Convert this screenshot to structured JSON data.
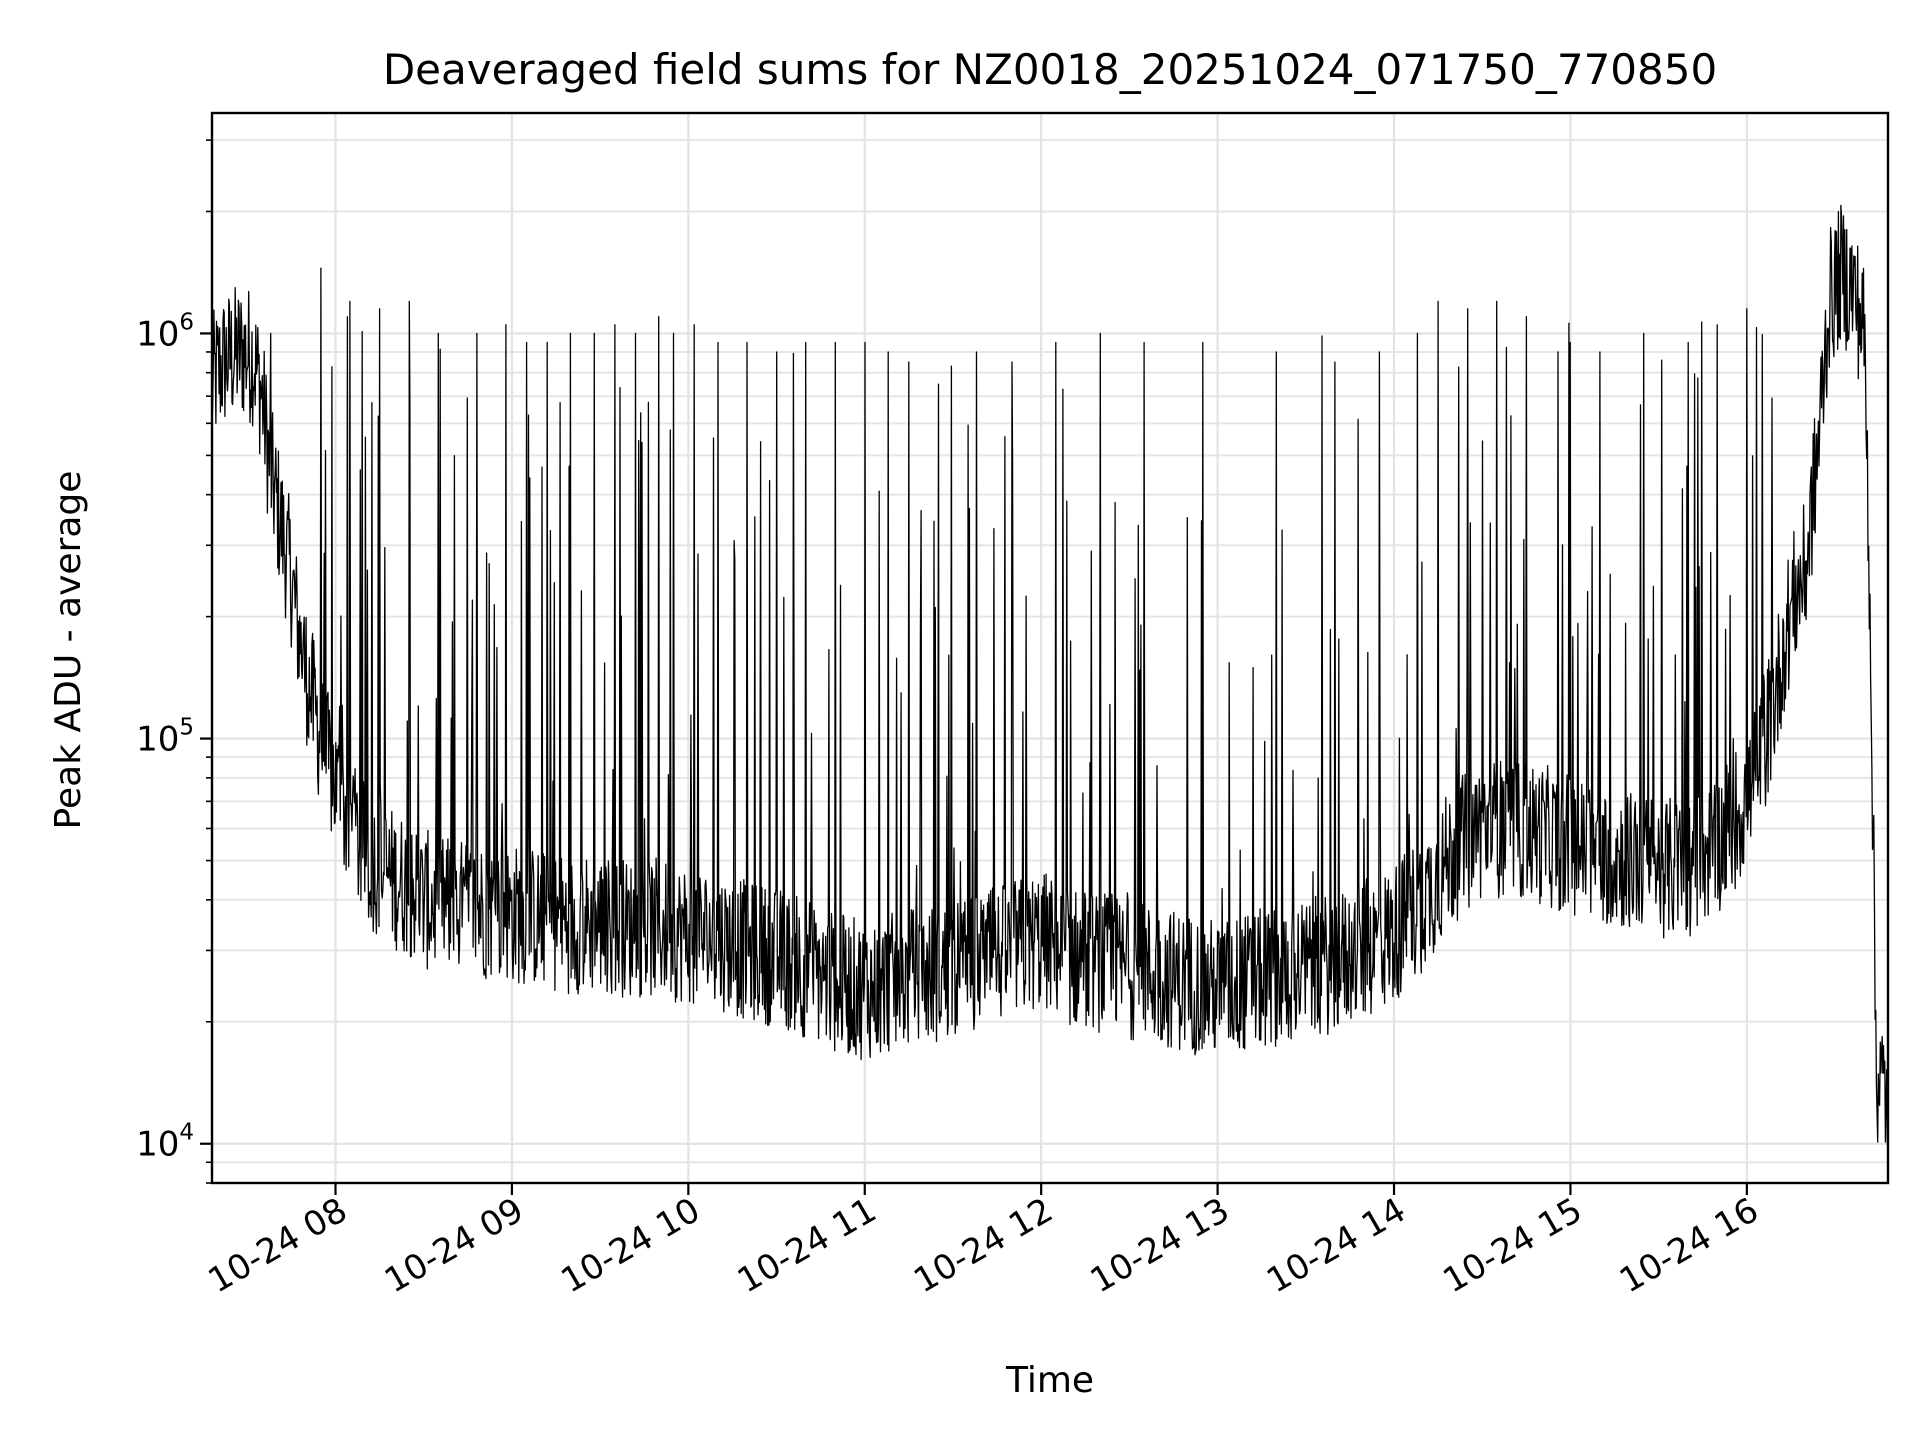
{
  "chart_data": {
    "type": "line",
    "title": "Deaveraged field sums for NZ0018_20251024_071750_770850",
    "xlabel": "Time",
    "ylabel": "Peak ADU - average",
    "yscale": "log",
    "ylim": [
      8000,
      3500000
    ],
    "xlim": [
      "2025-10-24 07:18",
      "2025-10-24 16:48"
    ],
    "grid": true,
    "line_color": "#000000",
    "x_ticks": [
      {
        "label": "10-24 08",
        "time": "2025-10-24 08:00"
      },
      {
        "label": "10-24 09",
        "time": "2025-10-24 09:00"
      },
      {
        "label": "10-24 10",
        "time": "2025-10-24 10:00"
      },
      {
        "label": "10-24 11",
        "time": "2025-10-24 11:00"
      },
      {
        "label": "10-24 12",
        "time": "2025-10-24 12:00"
      },
      {
        "label": "10-24 13",
        "time": "2025-10-24 13:00"
      },
      {
        "label": "10-24 14",
        "time": "2025-10-24 14:00"
      },
      {
        "label": "10-24 15",
        "time": "2025-10-24 15:00"
      },
      {
        "label": "10-24 16",
        "time": "2025-10-24 16:00"
      }
    ],
    "y_ticks": [
      {
        "base": "10",
        "exp": "4",
        "value": 10000
      },
      {
        "base": "10",
        "exp": "5",
        "value": 100000
      },
      {
        "base": "10",
        "exp": "6",
        "value": 1000000
      }
    ],
    "series": [
      {
        "x": [
          "2025-10-24 07:18",
          "2025-10-24 07:22",
          "2025-10-24 07:25",
          "2025-10-24 07:28",
          "2025-10-24 07:32",
          "2025-10-24 07:35",
          "2025-10-24 07:38",
          "2025-10-24 07:42",
          "2025-10-24 07:45",
          "2025-10-24 07:48",
          "2025-10-24 07:52",
          "2025-10-24 07:55",
          "2025-10-24 07:58",
          "2025-10-24 08:02",
          "2025-10-24 08:05",
          "2025-10-24 08:08",
          "2025-10-24 08:12",
          "2025-10-24 08:15",
          "2025-10-24 08:20",
          "2025-10-24 08:25",
          "2025-10-24 08:30",
          "2025-10-24 08:40",
          "2025-10-24 08:50",
          "2025-10-24 09:00",
          "2025-10-24 09:10",
          "2025-10-24 09:20",
          "2025-10-24 09:30",
          "2025-10-24 09:40",
          "2025-10-24 09:50",
          "2025-10-24 10:00",
          "2025-10-24 10:10",
          "2025-10-24 10:20",
          "2025-10-24 10:30",
          "2025-10-24 10:40",
          "2025-10-24 10:50",
          "2025-10-24 11:00",
          "2025-10-24 11:10",
          "2025-10-24 11:20",
          "2025-10-24 11:30",
          "2025-10-24 11:40",
          "2025-10-24 11:50",
          "2025-10-24 12:00",
          "2025-10-24 12:10",
          "2025-10-24 12:20",
          "2025-10-24 12:30",
          "2025-10-24 12:40",
          "2025-10-24 12:50",
          "2025-10-24 13:00",
          "2025-10-24 13:10",
          "2025-10-24 13:20",
          "2025-10-24 13:30",
          "2025-10-24 13:40",
          "2025-10-24 13:50",
          "2025-10-24 14:00",
          "2025-10-24 14:10",
          "2025-10-24 14:20",
          "2025-10-24 14:30",
          "2025-10-24 14:40",
          "2025-10-24 14:50",
          "2025-10-24 15:00",
          "2025-10-24 15:10",
          "2025-10-24 15:20",
          "2025-10-24 15:30",
          "2025-10-24 15:40",
          "2025-10-24 15:50",
          "2025-10-24 16:00",
          "2025-10-24 16:05",
          "2025-10-24 16:10",
          "2025-10-24 16:13",
          "2025-10-24 16:16",
          "2025-10-24 16:20",
          "2025-10-24 16:24",
          "2025-10-24 16:28",
          "2025-10-24 16:32",
          "2025-10-24 16:36",
          "2025-10-24 16:40",
          "2025-10-24 16:42",
          "2025-10-24 16:44",
          "2025-10-24 16:46",
          "2025-10-24 16:48"
        ],
        "y": [
          750000,
          850000,
          880000,
          900000,
          880000,
          700000,
          450000,
          320000,
          250000,
          170000,
          125000,
          100000,
          85000,
          70000,
          60000,
          55000,
          50000,
          48000,
          45000,
          43000,
          40000,
          38000,
          38000,
          37000,
          36000,
          35000,
          35000,
          34000,
          34000,
          33000,
          32000,
          30000,
          29000,
          27000,
          25000,
          24000,
          25000,
          26000,
          27000,
          28000,
          30000,
          32000,
          29000,
          28000,
          27000,
          26000,
          25000,
          24000,
          25000,
          26000,
          27000,
          28000,
          30000,
          33000,
          40000,
          52000,
          60000,
          60000,
          58000,
          55000,
          52000,
          50000,
          48000,
          48000,
          55000,
          70000,
          90000,
          130000,
          180000,
          220000,
          260000,
          500000,
          1200000,
          1400000,
          1300000,
          1000000,
          200000,
          15000,
          14000,
          13000
        ]
      }
    ],
    "spikes": {
      "x": [
        "2025-10-24 07:38",
        "2025-10-24 07:55",
        "2025-10-24 08:05",
        "2025-10-24 08:15",
        "2025-10-24 08:25",
        "2025-10-24 08:35",
        "2025-10-24 08:48",
        "2025-10-24 08:58",
        "2025-10-24 09:05",
        "2025-10-24 09:12",
        "2025-10-24 09:20",
        "2025-10-24 09:28",
        "2025-10-24 09:35",
        "2025-10-24 09:42",
        "2025-10-24 09:50",
        "2025-10-24 09:55",
        "2025-10-24 10:02",
        "2025-10-24 10:10",
        "2025-10-24 10:20",
        "2025-10-24 10:30",
        "2025-10-24 10:40",
        "2025-10-24 10:50",
        "2025-10-24 11:00",
        "2025-10-24 11:08",
        "2025-10-24 11:15",
        "2025-10-24 11:25",
        "2025-10-24 11:38",
        "2025-10-24 11:50",
        "2025-10-24 12:05",
        "2025-10-24 12:20",
        "2025-10-24 12:35",
        "2025-10-24 12:55",
        "2025-10-24 13:20",
        "2025-10-24 13:40",
        "2025-10-24 13:55",
        "2025-10-24 14:08",
        "2025-10-24 14:15",
        "2025-10-24 14:25",
        "2025-10-24 14:35",
        "2025-10-24 14:45",
        "2025-10-24 15:00",
        "2025-10-24 15:10",
        "2025-10-24 15:25",
        "2025-10-24 15:40",
        "2025-10-24 15:50",
        "2025-10-24 16:00"
      ],
      "y": [
        1000000,
        1450000,
        1200000,
        1150000,
        1200000,
        1000000,
        1000000,
        1050000,
        950000,
        950000,
        1000000,
        1000000,
        1050000,
        1000000,
        1100000,
        1000000,
        1050000,
        950000,
        950000,
        900000,
        950000,
        950000,
        950000,
        900000,
        850000,
        750000,
        900000,
        850000,
        950000,
        1000000,
        950000,
        950000,
        900000,
        850000,
        900000,
        1000000,
        1200000,
        1150000,
        1200000,
        1100000,
        950000,
        900000,
        1000000,
        950000,
        1050000,
        1150000
      ]
    }
  }
}
